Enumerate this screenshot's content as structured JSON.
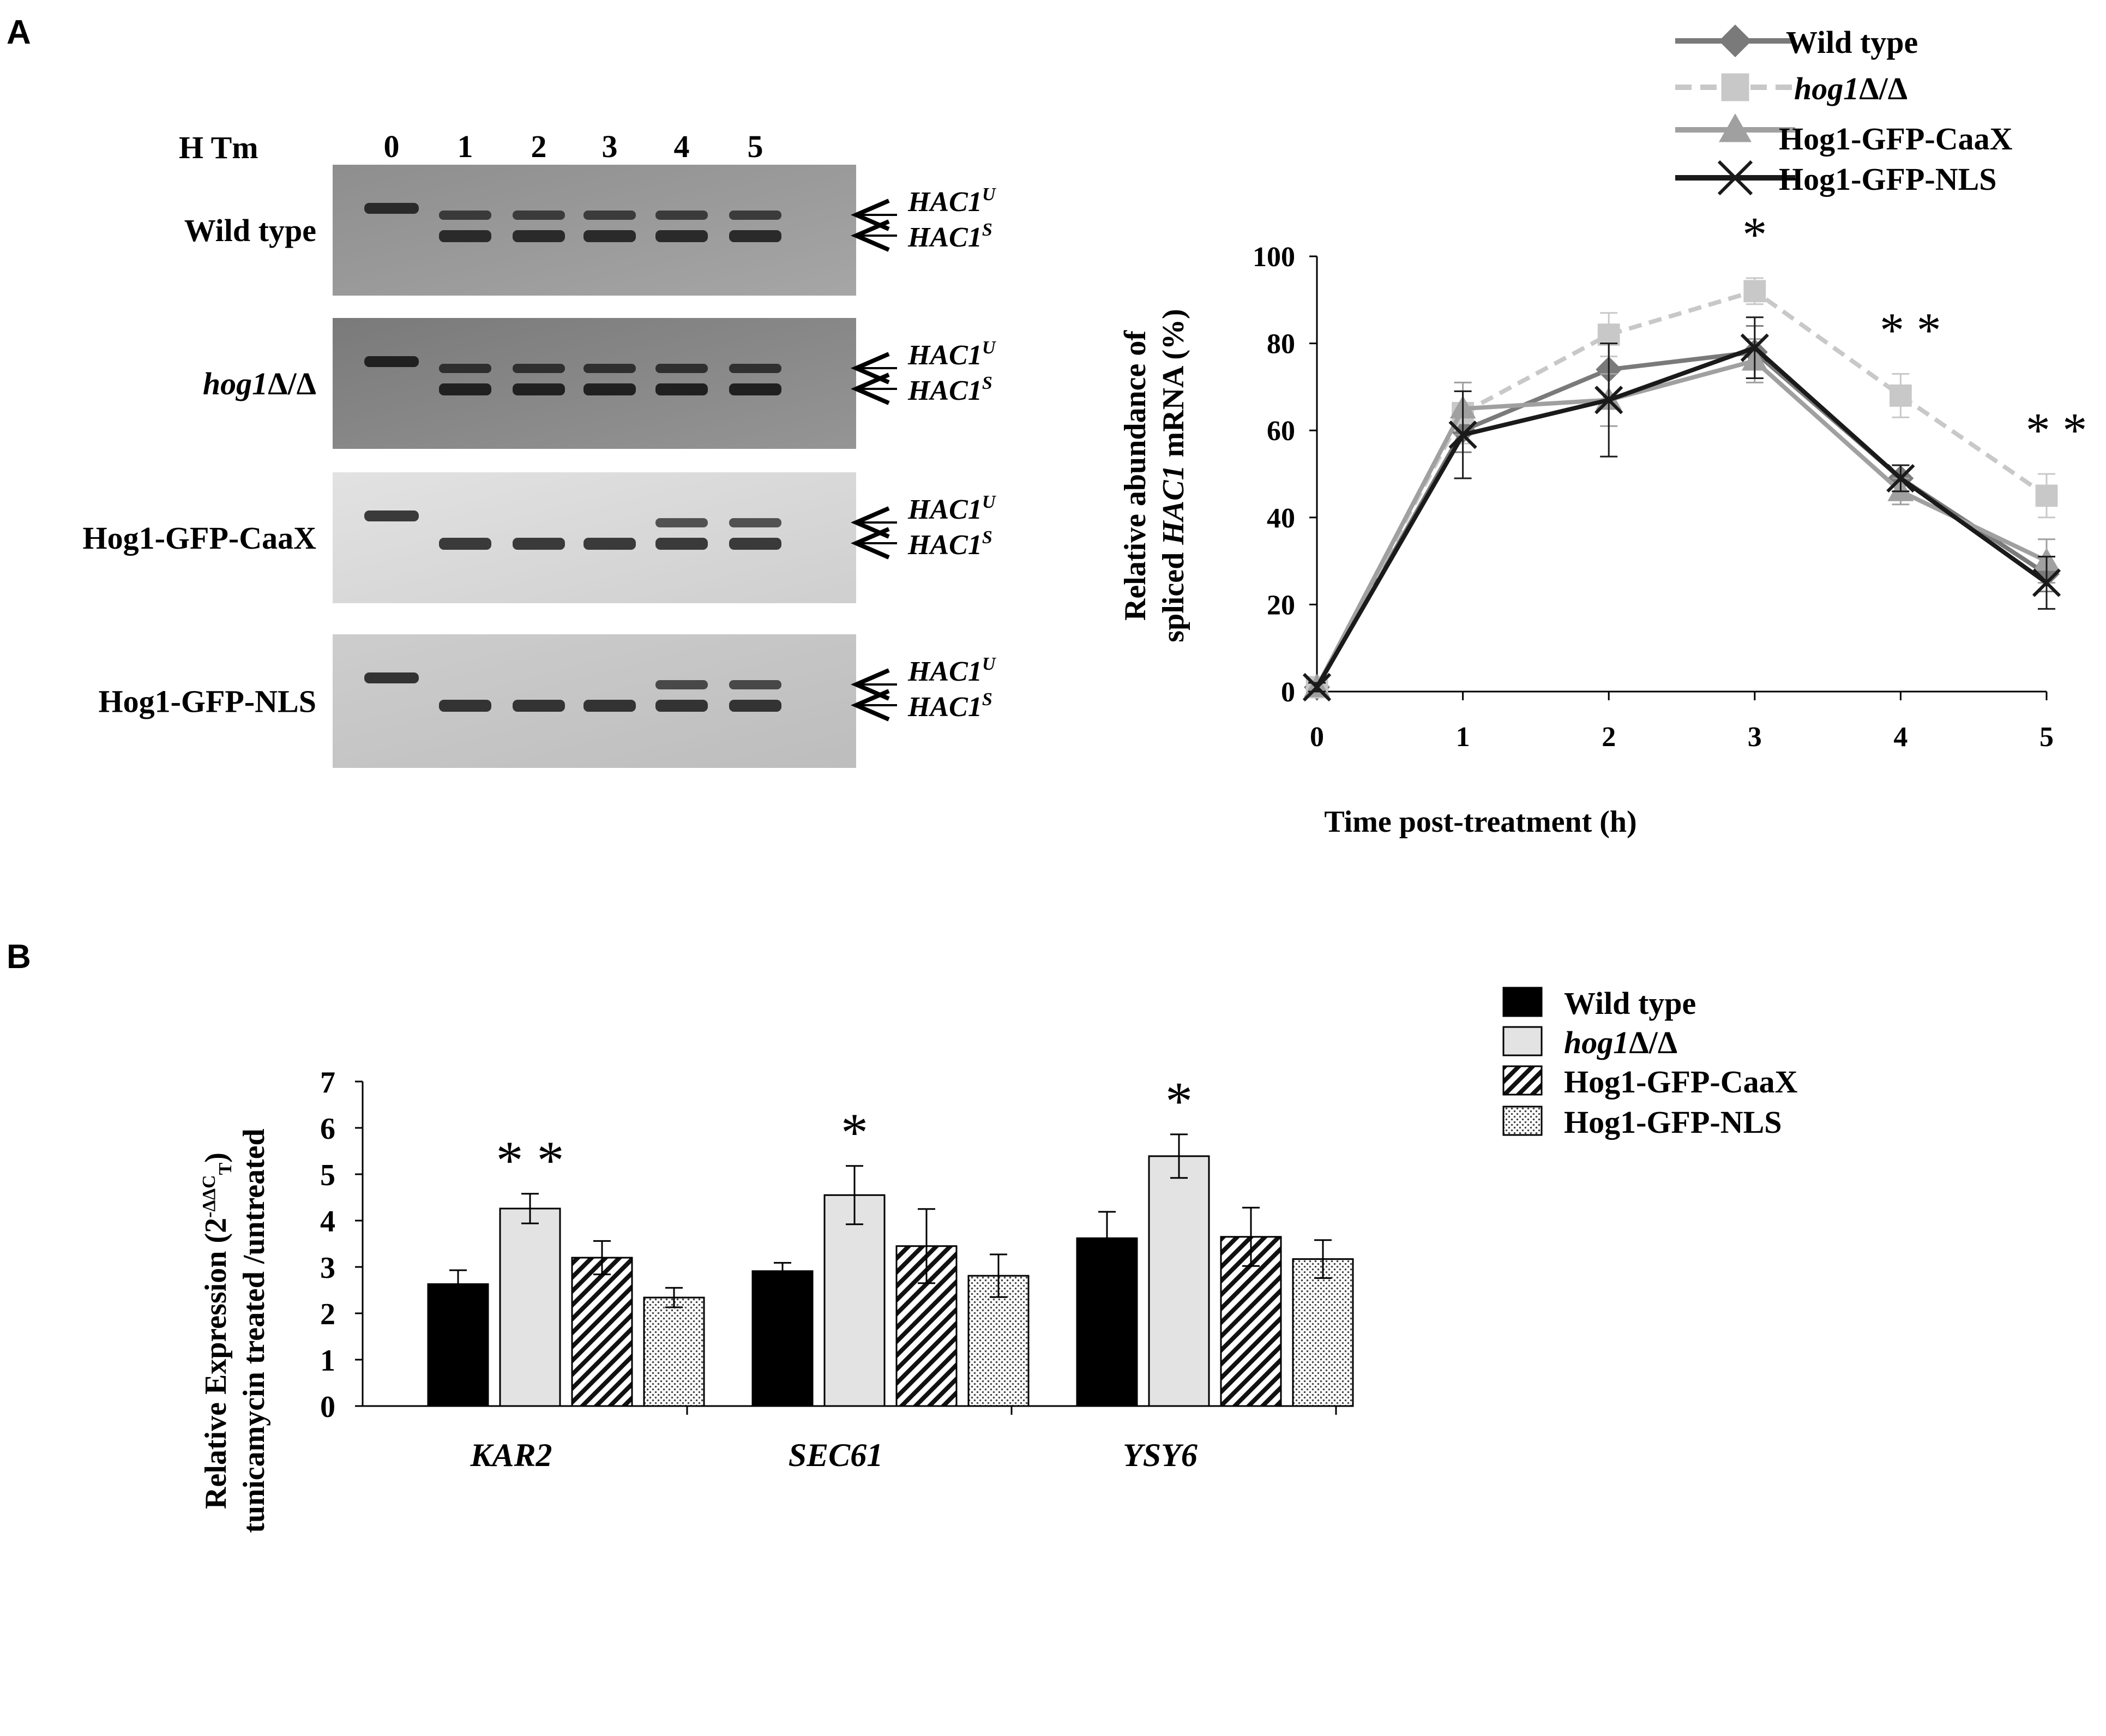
{
  "panel_a": {
    "label": "A",
    "gel": {
      "header_label": "H Tm",
      "lanes": [
        "0",
        "1",
        "2",
        "3",
        "4",
        "5"
      ],
      "band_u": "HAC1",
      "band_u_sup": "U",
      "band_s": "HAC1",
      "band_s_sup": "S",
      "rows": [
        {
          "name": "Wild type"
        },
        {
          "name_italic": "hog1",
          "name_rest": "Δ/Δ"
        },
        {
          "name": "Hog1-GFP-CaaX"
        },
        {
          "name": "Hog1-GFP-NLS"
        }
      ]
    }
  },
  "panel_b": {
    "label": "B"
  },
  "colors": {
    "wild_type_line": "#7a7a7a",
    "hog1_line": "#c8c8c8",
    "caax_line": "#a0a0a0",
    "nls_line": "#1a1a1a",
    "bar_wild_type": "#000000",
    "bar_hog1": "#e3e3e3"
  },
  "chart_data": [
    {
      "type": "line",
      "title": "",
      "xlabel": "Time post-treatment (h)",
      "ylabel_line1": "Relative abundance of",
      "ylabel_line2_pre": "spliced ",
      "ylabel_line2_italic": "HAC1",
      "ylabel_line2_post": " mRNA (%)",
      "x": [
        0,
        1,
        2,
        3,
        4,
        5
      ],
      "xlim": [
        0,
        5
      ],
      "ylim": [
        0,
        100
      ],
      "yticks": [
        0,
        20,
        40,
        60,
        80,
        100
      ],
      "series": [
        {
          "name": "Wild type",
          "marker": "diamond",
          "dashed": false,
          "values": [
            1,
            60,
            74,
            78,
            49,
            27
          ],
          "errors": [
            1,
            5,
            8,
            6,
            3,
            4
          ]
        },
        {
          "name_italic": "hog1",
          "name_rest": "Δ/Δ",
          "name": "hog1Δ/Δ",
          "marker": "square",
          "dashed": true,
          "values": [
            1,
            64,
            82,
            92,
            68,
            45
          ],
          "errors": [
            1,
            7,
            5,
            3,
            5,
            5
          ]
        },
        {
          "name": "Hog1-GFP-CaaX",
          "marker": "triangle",
          "dashed": false,
          "values": [
            1,
            65,
            67,
            76,
            46,
            30
          ],
          "errors": [
            1,
            6,
            6,
            5,
            3,
            5
          ]
        },
        {
          "name": "Hog1-GFP-NLS",
          "marker": "x",
          "dashed": false,
          "values": [
            1,
            59,
            67,
            79,
            49,
            25
          ],
          "errors": [
            1,
            10,
            13,
            7,
            3,
            6
          ]
        }
      ],
      "annotations": [
        {
          "x": 3,
          "text": "*"
        },
        {
          "x": 4,
          "text": "**"
        },
        {
          "x": 5,
          "text": "**"
        }
      ],
      "legend_position": "top-right"
    },
    {
      "type": "bar",
      "title": "",
      "xlabel": "",
      "ylabel_line1_pre": "Relative Expression (2",
      "ylabel_line1_sup": "-ΔΔC",
      "ylabel_line1_sub": "T",
      "ylabel_line1_post": ")",
      "ylabel_line2": "tunicamycin treated /untreated",
      "categories": [
        "KAR2",
        "SEC61",
        "YSY6"
      ],
      "ylim": [
        0,
        7
      ],
      "yticks": [
        0,
        1,
        2,
        3,
        4,
        5,
        6,
        7
      ],
      "series": [
        {
          "name": "Wild type",
          "fill": "solid",
          "values": [
            2.63,
            2.91,
            3.62
          ],
          "errors": [
            0.3,
            0.18,
            0.57
          ]
        },
        {
          "name_italic": "hog1",
          "name_rest": "Δ/Δ",
          "name": "hog1Δ/Δ",
          "fill": "light",
          "values": [
            4.26,
            4.55,
            5.39
          ],
          "errors": [
            0.32,
            0.63,
            0.47
          ]
        },
        {
          "name": "Hog1-GFP-CaaX",
          "fill": "hatch",
          "values": [
            3.2,
            3.45,
            3.65
          ],
          "errors": [
            0.36,
            0.8,
            0.63
          ]
        },
        {
          "name": "Hog1-GFP-NLS",
          "fill": "dots",
          "values": [
            2.34,
            2.81,
            3.17
          ],
          "errors": [
            0.21,
            0.46,
            0.41
          ]
        }
      ],
      "annotations": [
        {
          "category": "KAR2",
          "series": 1,
          "text": "**"
        },
        {
          "category": "SEC61",
          "series": 1,
          "text": "*"
        },
        {
          "category": "YSY6",
          "series": 1,
          "text": "*"
        }
      ],
      "legend_position": "top-right"
    }
  ]
}
